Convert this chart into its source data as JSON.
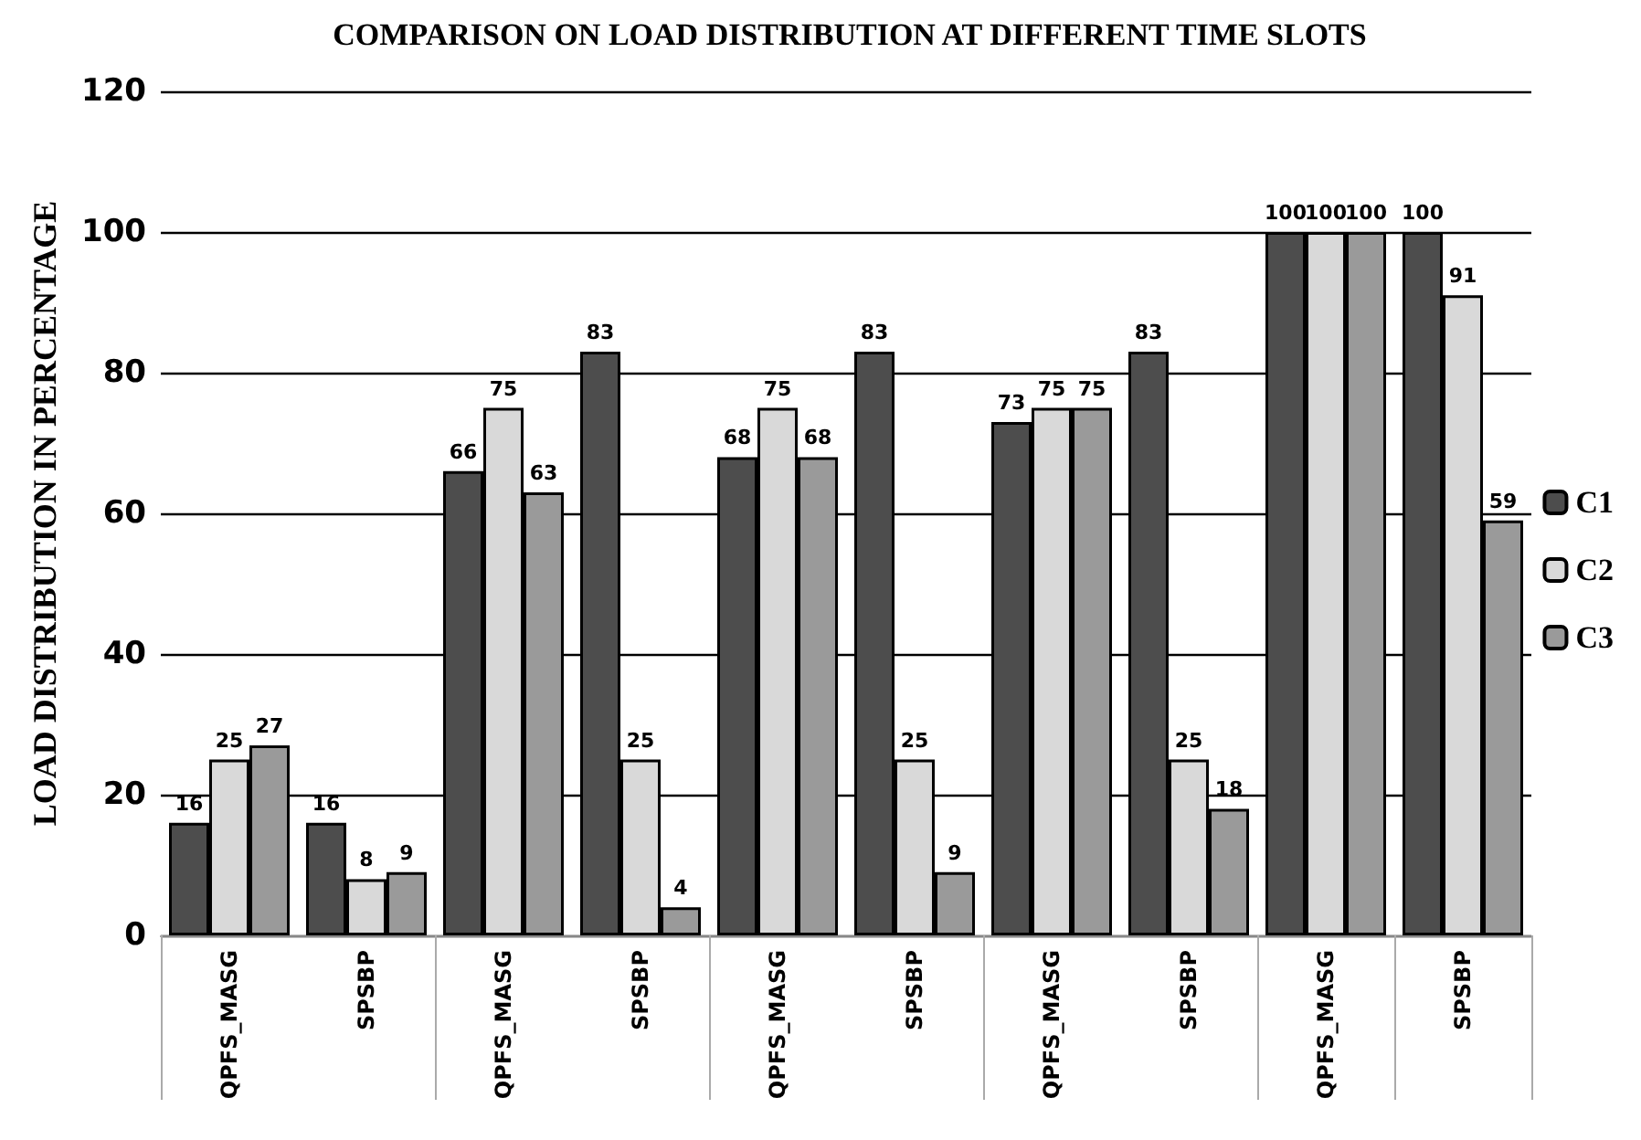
{
  "chart_data": {
    "type": "bar",
    "title": "COMPARISON ON LOAD DISTRIBUTION AT DIFFERENT TIME SLOTS",
    "ylabel": "LOAD DISTRIBUTION IN PERCENTAGE",
    "categories": [
      "QPFS_MASG",
      "SPSBP",
      "QPFS_MASG",
      "SPSBP",
      "QPFS_MASG",
      "SPSBP",
      "QPFS_MASG",
      "SPSBP",
      "QPFS_MASG",
      "SPSBP"
    ],
    "series": [
      {
        "name": "C1",
        "color": "#4d4d4d",
        "values": [
          16,
          16,
          66,
          83,
          68,
          83,
          73,
          83,
          100,
          100
        ]
      },
      {
        "name": "C2",
        "color": "#d9d9d9",
        "values": [
          25,
          8,
          75,
          25,
          75,
          25,
          75,
          25,
          100,
          91
        ]
      },
      {
        "name": "C3",
        "color": "#9a9a9a",
        "values": [
          27,
          9,
          63,
          4,
          68,
          9,
          75,
          18,
          100,
          59
        ]
      }
    ],
    "ylim": [
      0,
      120
    ],
    "yticks": [
      0,
      20,
      40,
      60,
      80,
      100,
      120
    ],
    "grid": "y",
    "legend": "right",
    "data_labels": true
  }
}
